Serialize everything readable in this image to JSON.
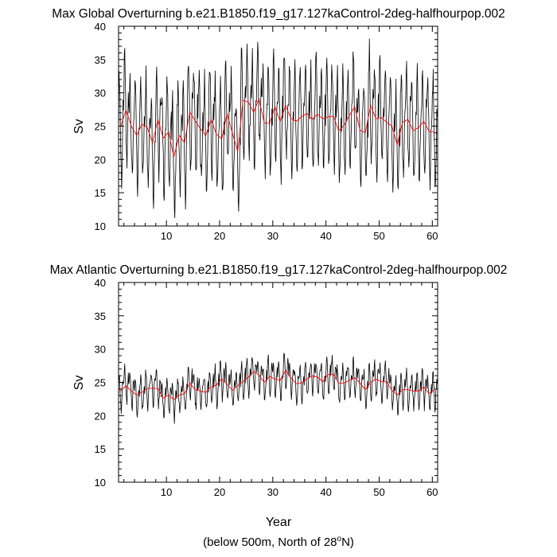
{
  "chart_data": [
    {
      "type": "line",
      "title": "Max Global Overturning b.e21.B1850.f19_g17.127kaControl-2deg-halfhourpop.002",
      "ylabel": "Sv",
      "xlabel": "",
      "xlim": [
        1,
        61
      ],
      "ylim": [
        10,
        40
      ],
      "xticks": [
        10,
        20,
        30,
        40,
        50,
        60
      ],
      "yticks": [
        10,
        15,
        20,
        25,
        30,
        35,
        40
      ],
      "grid": false,
      "series": [
        {
          "color": "#ff0000",
          "annual_means": [
            25.0,
            27.4,
            25.0,
            23.6,
            25.3,
            24.8,
            22.5,
            26.0,
            23.2,
            24.1,
            20.4,
            23.6,
            22.5,
            27.1,
            25.8,
            24.6,
            23.6,
            26.0,
            23.8,
            23.1,
            26.9,
            24.0,
            21.2,
            28.9,
            28.6,
            27.1,
            29.1,
            25.5,
            25.4,
            27.9,
            25.7,
            28.1,
            26.2,
            25.7,
            26.4,
            26.9,
            26.0,
            26.8,
            26.1,
            26.4,
            26.5,
            24.3,
            25.1,
            26.6,
            27.9,
            24.4,
            24.0,
            28.1,
            26.1,
            26.3,
            25.6,
            25.0,
            22.2,
            25.6,
            26.0,
            24.3,
            24.8,
            25.7,
            24.2,
            24.1
          ]
        },
        {
          "color": "#000000",
          "monthly_seasonal_anomaly": [
            3.5,
            6.5,
            8.0,
            5.0,
            0.5,
            -4.0,
            -7.0,
            -8.0,
            -5.5,
            -1.5,
            2.0,
            1.0
          ]
        }
      ]
    },
    {
      "type": "line",
      "title": "Max Atlantic Overturning b.e21.B1850.f19_g17.127kaControl-2deg-halfhourpop.002",
      "ylabel": "Sv",
      "xlabel": "Year",
      "xlim": [
        1,
        61
      ],
      "ylim": [
        10,
        40
      ],
      "xticks": [
        10,
        20,
        30,
        40,
        50,
        60
      ],
      "yticks": [
        10,
        15,
        20,
        25,
        30,
        35,
        40
      ],
      "grid": false,
      "series": [
        {
          "color": "#ff0000",
          "annual_means": [
            23.7,
            24.5,
            23.7,
            23.1,
            23.5,
            24.1,
            24.1,
            24.1,
            22.6,
            23.1,
            22.4,
            23.1,
            23.3,
            24.9,
            23.9,
            23.7,
            23.5,
            24.3,
            24.6,
            25.5,
            24.7,
            23.8,
            24.5,
            25.1,
            25.8,
            26.6,
            26.1,
            25.0,
            25.9,
            25.5,
            25.3,
            26.8,
            25.7,
            24.8,
            24.9,
            25.5,
            26.0,
            25.8,
            25.1,
            26.2,
            26.2,
            24.9,
            24.9,
            25.3,
            25.7,
            24.9,
            23.9,
            25.0,
            25.5,
            25.1,
            25.1,
            23.8,
            23.1,
            23.9,
            23.9,
            23.7,
            23.7,
            24.3,
            23.3,
            23.9
          ]
        },
        {
          "color": "#000000",
          "monthly_seasonal_anomaly": [
            1.0,
            2.0,
            2.5,
            1.2,
            -0.3,
            -1.8,
            -2.8,
            -2.2,
            -0.8,
            0.6,
            1.4,
            0.4
          ]
        }
      ]
    }
  ],
  "footer": {
    "text_main": "(below 500m, North of 28",
    "degree_mark": "o",
    "text_end": "N)"
  }
}
